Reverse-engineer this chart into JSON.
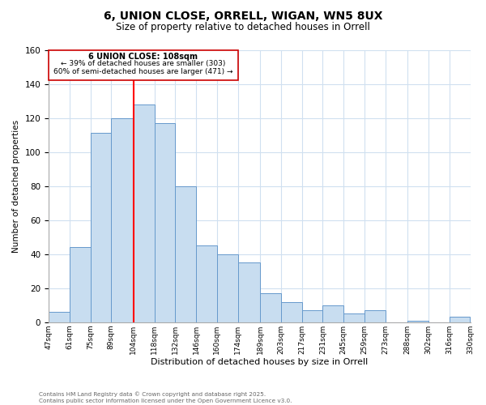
{
  "title": "6, UNION CLOSE, ORRELL, WIGAN, WN5 8UX",
  "subtitle": "Size of property relative to detached houses in Orrell",
  "xlabel": "Distribution of detached houses by size in Orrell",
  "ylabel": "Number of detached properties",
  "bar_color": "#c8ddf0",
  "bar_edge_color": "#6699cc",
  "background_color": "#ffffff",
  "grid_color": "#d0e0f0",
  "vline_x": 104,
  "vline_color": "red",
  "categories": [
    "47sqm",
    "61sqm",
    "75sqm",
    "89sqm",
    "104sqm",
    "118sqm",
    "132sqm",
    "146sqm",
    "160sqm",
    "174sqm",
    "189sqm",
    "203sqm",
    "217sqm",
    "231sqm",
    "245sqm",
    "259sqm",
    "273sqm",
    "288sqm",
    "302sqm",
    "316sqm",
    "330sqm"
  ],
  "bin_edges": [
    47,
    61,
    75,
    89,
    104,
    118,
    132,
    146,
    160,
    174,
    189,
    203,
    217,
    231,
    245,
    259,
    273,
    288,
    302,
    316,
    330
  ],
  "values": [
    6,
    44,
    111,
    120,
    128,
    117,
    80,
    45,
    40,
    35,
    17,
    12,
    7,
    10,
    5,
    7,
    0,
    1,
    0,
    3
  ],
  "ylim": [
    0,
    160
  ],
  "yticks": [
    0,
    20,
    40,
    60,
    80,
    100,
    120,
    140,
    160
  ],
  "annotation_title": "6 UNION CLOSE: 108sqm",
  "annotation_line1": "← 39% of detached houses are smaller (303)",
  "annotation_line2": "60% of semi-detached houses are larger (471) →",
  "footnote1": "Contains HM Land Registry data © Crown copyright and database right 2025.",
  "footnote2": "Contains public sector information licensed under the Open Government Licence v3.0."
}
